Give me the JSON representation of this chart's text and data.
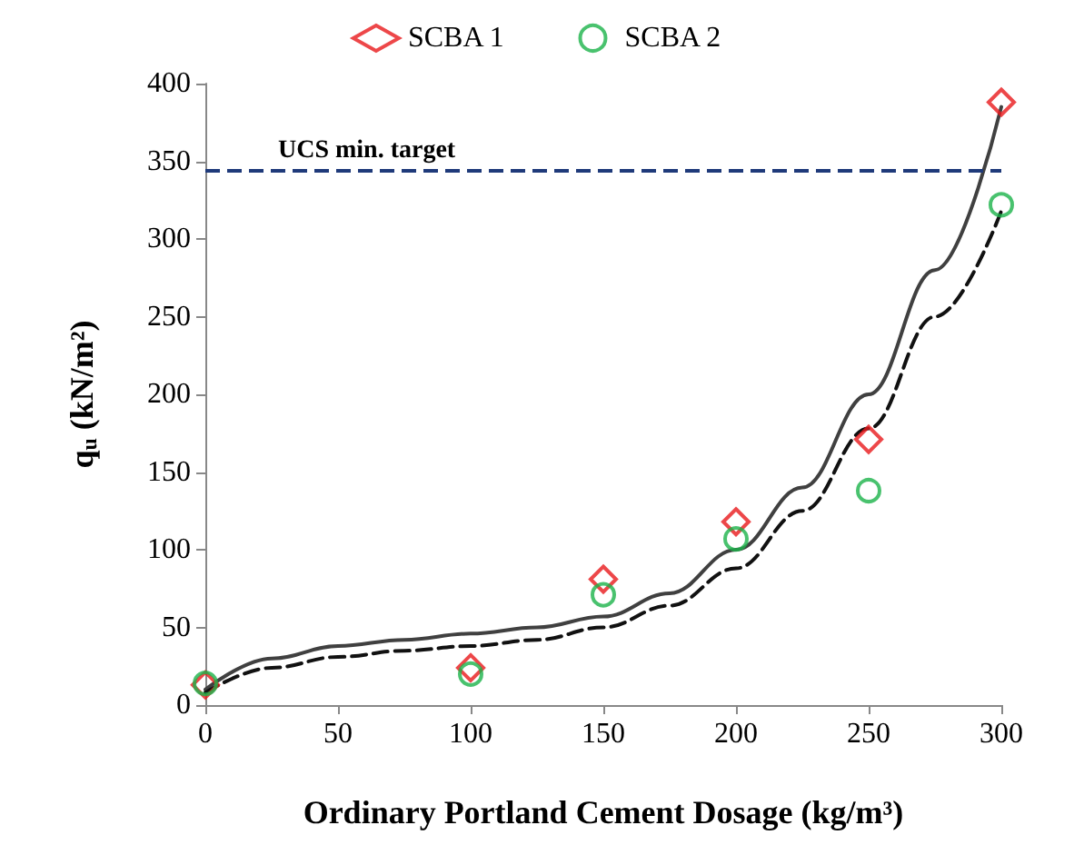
{
  "chart_data": {
    "type": "scatter",
    "xlabel": "Ordinary Portland Cement Dosage (kg/m³)",
    "ylabel": "q$_{u}$ (kN/m²)",
    "x": [
      0,
      100,
      150,
      200,
      250,
      300
    ],
    "series": [
      {
        "name": "SCBA 1",
        "color": "#e8191c",
        "marker": "diamond",
        "values": [
          13,
          24,
          81,
          118,
          171,
          388
        ]
      },
      {
        "name": "SCBA 2",
        "color": "#1cb34a",
        "marker": "circle",
        "values": [
          14,
          20,
          71,
          107,
          138,
          322
        ]
      },
      {
        "type": "line",
        "color": "#404040",
        "line_style": "solid",
        "x": [
          0,
          25,
          50,
          75,
          100,
          125,
          150,
          175,
          200,
          225,
          250,
          275,
          300
        ],
        "values": [
          10,
          30,
          38,
          42,
          46,
          50,
          57,
          72,
          100,
          140,
          200,
          280,
          385
        ]
      },
      {
        "type": "line",
        "color": "#111111",
        "line_style": "dashed",
        "x": [
          0,
          25,
          50,
          75,
          100,
          125,
          150,
          175,
          200,
          225,
          250,
          275,
          300
        ],
        "values": [
          8,
          24,
          31,
          35,
          38,
          42,
          50,
          64,
          88,
          125,
          178,
          250,
          318
        ]
      }
    ],
    "xlim": [
      0,
      300
    ],
    "xticks": [
      0,
      50,
      100,
      150,
      200,
      250,
      300
    ],
    "ylim": [
      0,
      400
    ],
    "yticks": [
      0,
      50,
      100,
      150,
      200,
      250,
      300,
      350,
      400
    ],
    "ref_lines": [
      {
        "axis": "y",
        "value": 344,
        "label": "UCS min. target",
        "color": "#1f3a7a",
        "line_style": "dashed"
      }
    ],
    "grid": false,
    "legend": "top"
  }
}
